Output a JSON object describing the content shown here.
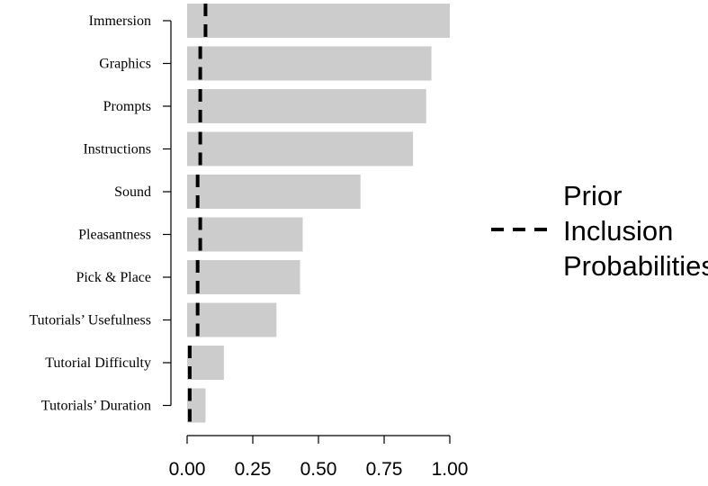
{
  "chart_data": {
    "type": "bar",
    "orientation": "horizontal",
    "categories": [
      "Immersion",
      "Graphics",
      "Prompts",
      "Instructions",
      "Sound",
      "Pleasantness",
      "Pick & Place",
      "Tutorials’ Usefulness",
      "Tutorial Difficulty",
      "Tutorials’ Duration"
    ],
    "values": [
      1.0,
      0.93,
      0.91,
      0.86,
      0.66,
      0.44,
      0.43,
      0.34,
      0.14,
      0.07
    ],
    "prior_values": [
      0.07,
      0.05,
      0.05,
      0.05,
      0.04,
      0.05,
      0.04,
      0.04,
      0.01,
      0.01
    ],
    "xlim": [
      0,
      1
    ],
    "xticks": [
      "0.00",
      "0.25",
      "0.50",
      "0.75",
      "1.00"
    ],
    "xtick_values": [
      0,
      0.25,
      0.5,
      0.75,
      1.0
    ],
    "bar_color": "#cccccc",
    "prior_line_color": "#000000",
    "legend": {
      "position": "right",
      "entries": [
        "Prior",
        "Inclusion",
        "Probabilities"
      ]
    },
    "title": "",
    "xlabel": "",
    "ylabel": ""
  }
}
